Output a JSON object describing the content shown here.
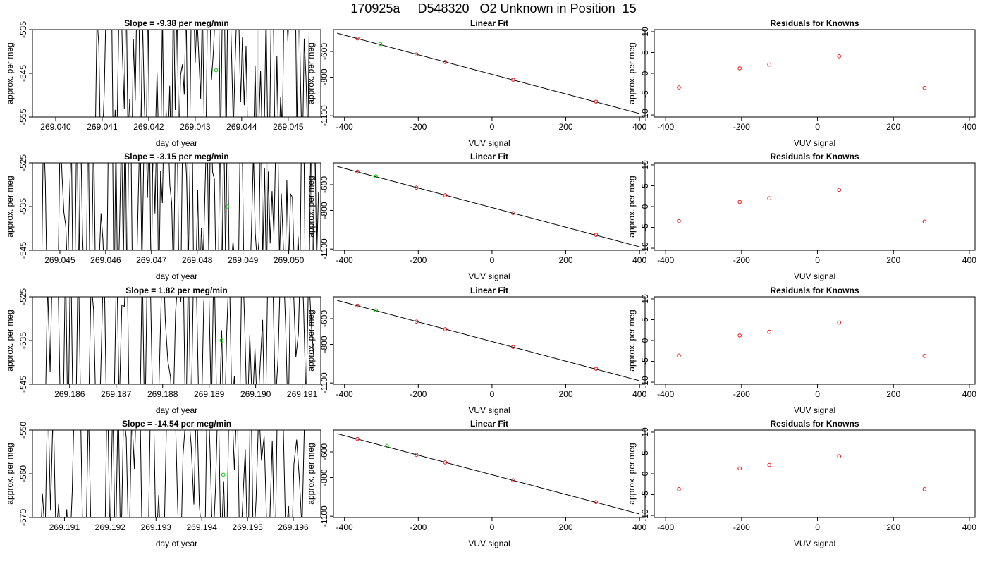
{
  "page_title": "170925a     D548320   O2 Unknown in Position  15",
  "colors": {
    "line": "#000000",
    "known_marker": "#e41a1c",
    "unknown_marker": "#00cc00",
    "vline": "#c8c8c8"
  },
  "chart_data": [
    {
      "type": "line",
      "title": "Slope =  -9.38  per meg/min",
      "xlabel": "day of year",
      "ylabel": "approx. per meg",
      "xlim": [
        269.0395,
        269.0457
      ],
      "ylim": [
        -555,
        -535
      ],
      "xticks": [
        "269.040",
        "269.041",
        "269.042",
        "269.043",
        "269.044",
        "269.045"
      ],
      "yticks": [
        "-535",
        "-545",
        "-555"
      ],
      "vlines": [
        269.04258,
        269.04435
      ],
      "x_start": 269.04085,
      "x_end": 269.0455,
      "points": 120,
      "seed": 11,
      "unknown_marker": {
        "x": 269.04345,
        "y": -544.3
      }
    },
    {
      "type": "scatter",
      "title": "Linear Fit",
      "xlabel": "VUV signal",
      "ylabel": "approx. per meg",
      "xlim": [
        -430,
        415
      ],
      "ylim": [
        -1110,
        -430
      ],
      "xticks": [
        "-400",
        "-200",
        "0",
        "200",
        "400"
      ],
      "yticks": [
        "-600",
        "-800",
        "-1100"
      ],
      "fit_line": {
        "x": [
          -420,
          400
        ],
        "y": [
          -458,
          -1083
        ]
      },
      "knowns_x": [
        -365,
        -205,
        -127,
        57,
        282
      ],
      "knowns_y": [
        -499,
        -623,
        -682,
        -820,
        -990
      ],
      "unknown": {
        "x": -303,
        "y": -543
      }
    },
    {
      "type": "scatter",
      "title": "Residuals for Knowns",
      "xlabel": "VUV signal",
      "ylabel": "approx. per meg",
      "xlim": [
        -430,
        415
      ],
      "ylim": [
        -10.5,
        10.5
      ],
      "xticks": [
        "-400",
        "-200",
        "0",
        "200",
        "400"
      ],
      "yticks": [
        "10",
        "5",
        "0",
        "-5",
        "-10"
      ],
      "x": [
        -365,
        -205,
        -127,
        57,
        282
      ],
      "y": [
        -3.4,
        1.2,
        2.1,
        4.1,
        -3.5
      ]
    },
    {
      "type": "line",
      "title": "Slope =  -3.15  per meg/min",
      "xlabel": "day of year",
      "ylabel": "approx. per meg",
      "xlim": [
        269.0444,
        269.0507
      ],
      "ylim": [
        -545,
        -525
      ],
      "xticks": [
        "269.045",
        "269.046",
        "269.047",
        "269.048",
        "269.049",
        "269.050"
      ],
      "yticks": [
        "-525",
        "-535",
        "-545"
      ],
      "vlines": [
        269.04778,
        269.04953
      ],
      "x_start": 269.0446,
      "x_end": 269.05065,
      "points": 150,
      "seed": 23,
      "unknown_marker": {
        "x": 269.04865,
        "y": -535
      }
    },
    {
      "type": "scatter",
      "title": "Linear Fit",
      "xlabel": "VUV signal",
      "ylabel": "approx. per meg",
      "xlim": [
        -430,
        415
      ],
      "ylim": [
        -1110,
        -430
      ],
      "xticks": [
        "-400",
        "-200",
        "0",
        "200",
        "400"
      ],
      "yticks": [
        "-600",
        "-800",
        "-1100"
      ],
      "fit_line": {
        "x": [
          -420,
          400
        ],
        "y": [
          -458,
          -1083
        ]
      },
      "knowns_x": [
        -365,
        -205,
        -127,
        57,
        282
      ],
      "knowns_y": [
        -499,
        -623,
        -682,
        -820,
        -990
      ],
      "unknown": {
        "x": -315,
        "y": -535
      }
    },
    {
      "type": "scatter",
      "title": "Residuals for Knowns",
      "xlabel": "VUV signal",
      "ylabel": "approx. per meg",
      "xlim": [
        -430,
        415
      ],
      "ylim": [
        -10.5,
        10.5
      ],
      "xticks": [
        "-400",
        "-200",
        "0",
        "200",
        "400"
      ],
      "yticks": [
        "10",
        "5",
        "0",
        "-5",
        "-10"
      ],
      "x": [
        -365,
        -205,
        -127,
        57,
        282
      ],
      "y": [
        -3.5,
        1.1,
        2.0,
        4.0,
        -3.6
      ]
    },
    {
      "type": "line",
      "title": "Slope =  1.82  per meg/min",
      "xlabel": "day of year",
      "ylabel": "approx. per meg",
      "xlim": [
        269.1852,
        269.1914
      ],
      "ylim": [
        -545,
        -525
      ],
      "xticks": [
        "269.186",
        "269.187",
        "269.188",
        "269.189",
        "269.190",
        "269.191"
      ],
      "yticks": [
        "-525",
        "-535",
        "-545"
      ],
      "vlines": [],
      "x_start": 269.18525,
      "x_end": 269.19125,
      "points": 110,
      "seed": 37,
      "unknown_marker": {
        "x": 269.18927,
        "y": -535
      }
    },
    {
      "type": "scatter",
      "title": "Linear Fit",
      "xlabel": "VUV signal",
      "ylabel": "approx. per meg",
      "xlim": [
        -430,
        415
      ],
      "ylim": [
        -1110,
        -430
      ],
      "xticks": [
        "-400",
        "-200",
        "0",
        "200",
        "400"
      ],
      "yticks": [
        "-600",
        "-800",
        "-1100"
      ],
      "fit_line": {
        "x": [
          -420,
          400
        ],
        "y": [
          -458,
          -1083
        ]
      },
      "knowns_x": [
        -365,
        -205,
        -127,
        57,
        282
      ],
      "knowns_y": [
        -499,
        -623,
        -682,
        -820,
        -990
      ],
      "unknown": {
        "x": -315,
        "y": -535
      }
    },
    {
      "type": "scatter",
      "title": "Residuals for Knowns",
      "xlabel": "VUV signal",
      "ylabel": "approx. per meg",
      "xlim": [
        -430,
        415
      ],
      "ylim": [
        -10.5,
        10.5
      ],
      "xticks": [
        "-400",
        "-200",
        "0",
        "200",
        "400"
      ],
      "yticks": [
        "10",
        "5",
        "0",
        "-5",
        "-10"
      ],
      "x": [
        -365,
        -205,
        -127,
        57,
        282
      ],
      "y": [
        -3.6,
        1.2,
        2.1,
        4.3,
        -3.7
      ]
    },
    {
      "type": "line",
      "title": "Slope =  -14.54  per meg/min",
      "xlabel": "day of year",
      "ylabel": "approx. per meg",
      "xlim": [
        269.1903,
        269.1966
      ],
      "ylim": [
        -570,
        -550
      ],
      "xticks": [
        "269.191",
        "269.192",
        "269.193",
        "269.194",
        "269.195",
        "269.196"
      ],
      "yticks": [
        "-550",
        "-560",
        "-570"
      ],
      "vlines": [],
      "x_start": 269.1904,
      "x_end": 269.19625,
      "points": 100,
      "seed": 53,
      "unknown_marker": {
        "x": 269.19447,
        "y": -560.2
      }
    },
    {
      "type": "scatter",
      "title": "Linear Fit",
      "xlabel": "VUV signal",
      "ylabel": "approx. per meg",
      "xlim": [
        -430,
        415
      ],
      "ylim": [
        -1110,
        -430
      ],
      "xticks": [
        "-400",
        "-200",
        "0",
        "200",
        "400"
      ],
      "yticks": [
        "-600",
        "-800",
        "-1100"
      ],
      "fit_line": {
        "x": [
          -420,
          400
        ],
        "y": [
          -458,
          -1083
        ]
      },
      "knowns_x": [
        -365,
        -205,
        -127,
        57,
        282
      ],
      "knowns_y": [
        -499,
        -623,
        -682,
        -820,
        -990
      ],
      "unknown": {
        "x": -285,
        "y": -553
      }
    },
    {
      "type": "scatter",
      "title": "Residuals for Knowns",
      "xlabel": "VUV signal",
      "ylabel": "approx. per meg",
      "xlim": [
        -430,
        415
      ],
      "ylim": [
        -10.5,
        10.5
      ],
      "xticks": [
        "-400",
        "-200",
        "0",
        "200",
        "400"
      ],
      "yticks": [
        "10",
        "5",
        "0",
        "-5",
        "-10"
      ],
      "x": [
        -365,
        -205,
        -127,
        57,
        282
      ],
      "y": [
        -3.7,
        1.3,
        2.1,
        4.2,
        -3.7
      ]
    }
  ]
}
